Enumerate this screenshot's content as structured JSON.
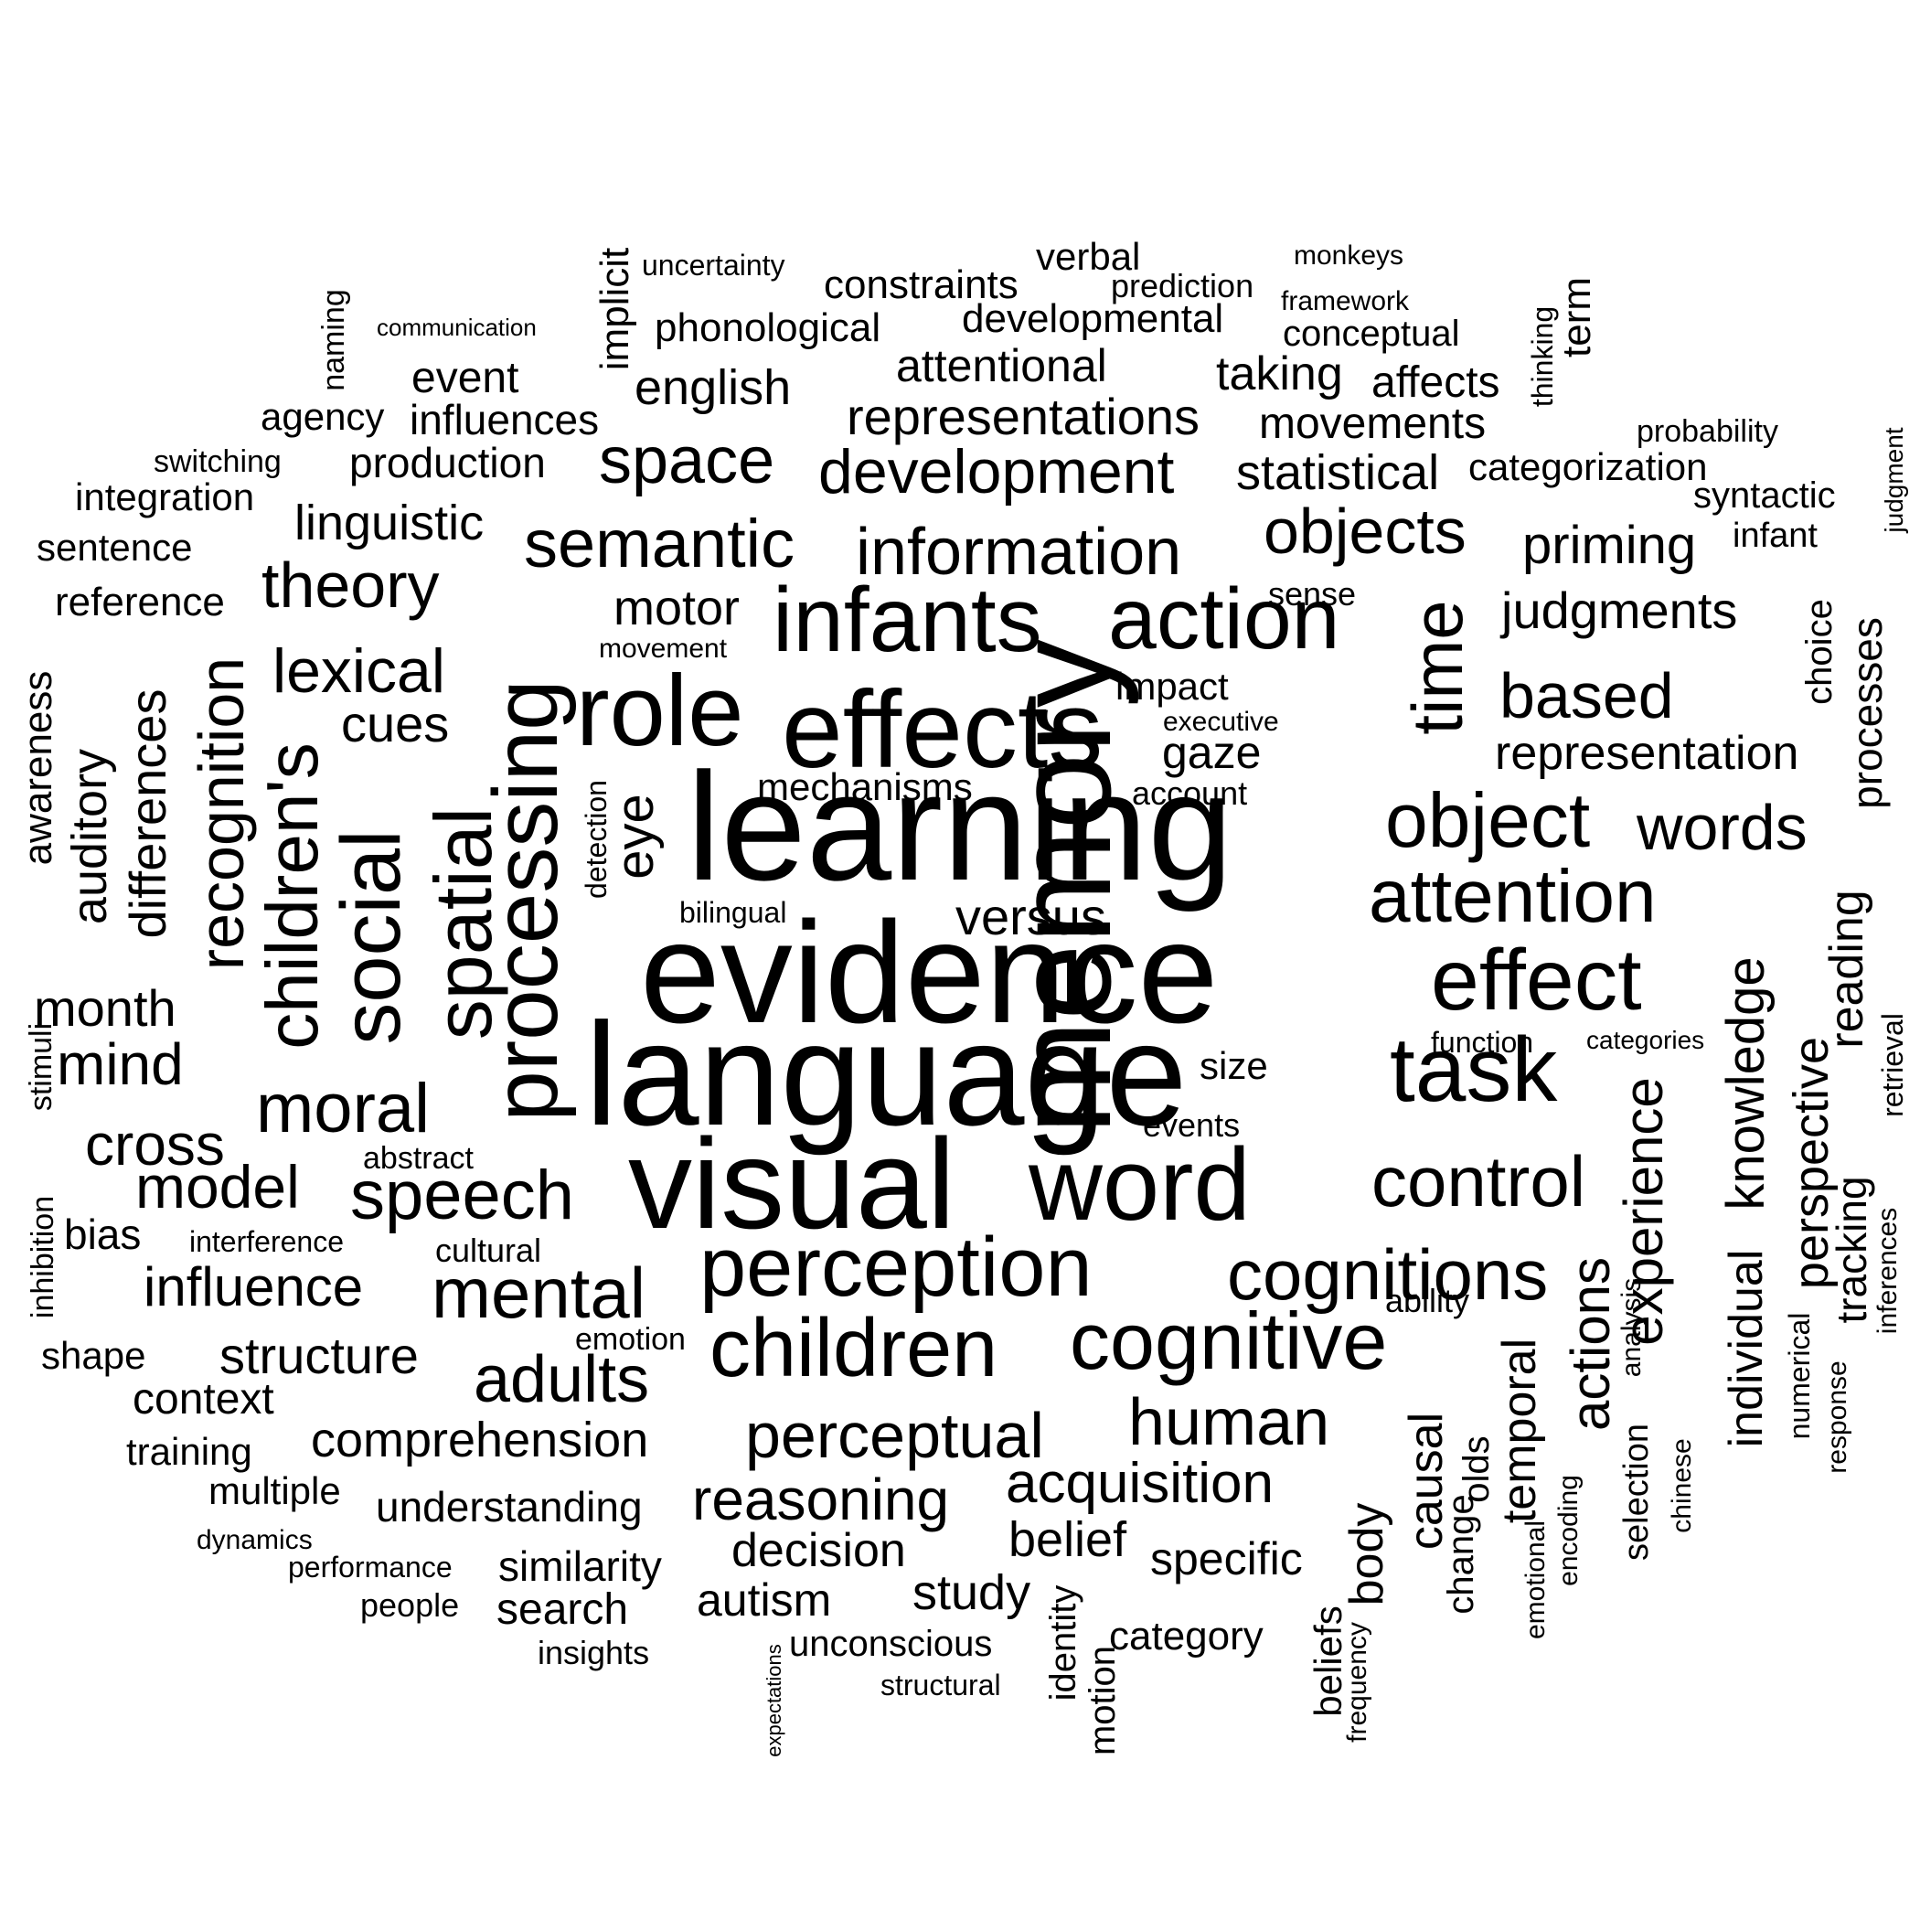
{
  "word_color": "#000000",
  "background_color": "#ffffff",
  "words": [
    "learning",
    "evidence",
    "language",
    "memory",
    "visual",
    "word",
    "effects",
    "infants",
    "role",
    "processing",
    "action",
    "task",
    "perception",
    "children",
    "cognitive",
    "effect",
    "social",
    "spatial",
    "children's",
    "time",
    "object",
    "attention",
    "control",
    "cognitions",
    "mental",
    "moral",
    "speech",
    "semantic",
    "information",
    "development",
    "space",
    "adults",
    "human",
    "perceptual",
    "reasoning",
    "acquisition",
    "model",
    "theory",
    "lexical",
    "recognition",
    "words",
    "based",
    "objects",
    "experience",
    "knowledge",
    "individual",
    "perspective",
    "actions",
    "temporal",
    "causal",
    "eye",
    "mind",
    "cross",
    "influence",
    "structure",
    "comprehension",
    "judgments",
    "representation",
    "priming",
    "representations",
    "statistical",
    "attentional",
    "taking",
    "movements",
    "phonological",
    "english",
    "constraints",
    "developmental",
    "linguistic",
    "motor",
    "cues",
    "month",
    "differences",
    "auditory",
    "versus",
    "decision",
    "belief",
    "specific",
    "study",
    "autism",
    "understanding",
    "similarity",
    "search",
    "body",
    "reading",
    "tracking",
    "context",
    "mechanisms",
    "gaze",
    "event",
    "influences",
    "production",
    "affects",
    "categorization",
    "syntactic",
    "processes",
    "choice",
    "reference",
    "integration",
    "sentence",
    "awareness",
    "shape",
    "training",
    "bias",
    "multiple",
    "agency",
    "verbal",
    "prediction",
    "conceptual",
    "implicit",
    "uncertainty",
    "monkeys",
    "framework",
    "term",
    "thinking",
    "naming",
    "communication",
    "switching",
    "probability",
    "judgment",
    "infant",
    "sense",
    "movement",
    "impact",
    "executive",
    "account",
    "bilingual",
    "detection",
    "size",
    "events",
    "function",
    "categories",
    "abstract",
    "interference",
    "cultural",
    "emotion",
    "ability",
    "stimuli",
    "inhibition",
    "dynamics",
    "performance",
    "people",
    "insights",
    "unconscious",
    "structural",
    "expectations",
    "category",
    "identity",
    "motion",
    "beliefs",
    "frequency",
    "change",
    "olds",
    "emotional",
    "encoding",
    "selection",
    "chinese",
    "numerical",
    "response",
    "analysis",
    "retrieval",
    "inferences"
  ]
}
